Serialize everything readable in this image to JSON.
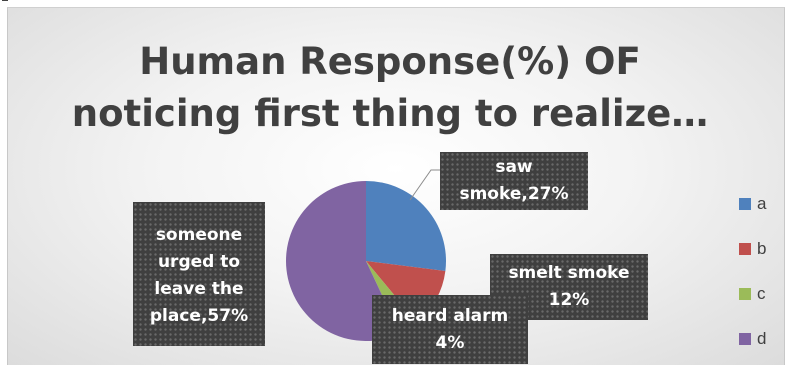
{
  "chart_data": {
    "type": "pie",
    "title": "Human Response(%) OF noticing first thing to realize…",
    "categories": [
      "a",
      "b",
      "c",
      "d"
    ],
    "values": [
      27,
      12,
      4,
      57
    ],
    "colors": [
      "#4f81bd",
      "#c0504d",
      "#9bbb59",
      "#8064a2"
    ],
    "data_labels": [
      {
        "category": "a",
        "text": "saw smoke,27%"
      },
      {
        "category": "b",
        "text": "smelt smoke 12%"
      },
      {
        "category": "c",
        "text": "heard alarm 4%"
      },
      {
        "category": "d",
        "text": "someone urged to leave the place,57%"
      }
    ],
    "legend": {
      "position": "right"
    }
  },
  "labels": {
    "saw_line1": "saw",
    "saw_line2": "smoke,27%",
    "smelt_line1": "smelt smoke",
    "smelt_line2": "12%",
    "heard_line1": "heard alarm",
    "heard_line2": "4%",
    "someone_line1": "someone",
    "someone_line2": "urged to",
    "someone_line3": "leave the",
    "someone_line4": "place,57%"
  }
}
